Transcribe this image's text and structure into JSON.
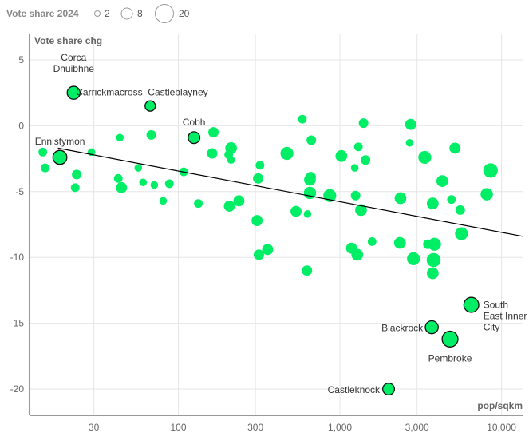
{
  "legend": {
    "title": "Vote share 2024",
    "sizes": [
      "2",
      "8",
      "20"
    ]
  },
  "chart_data": {
    "type": "scatter",
    "xlabel": "pop/sqkm",
    "ylabel": "Vote share chg",
    "x_scale": "log",
    "xlim": [
      12,
      13500
    ],
    "ylim": [
      -22,
      7
    ],
    "x_ticks": [
      30,
      100,
      300,
      1000,
      3000,
      10000
    ],
    "x_tick_labels": [
      "30",
      "100",
      "300",
      "1,000",
      "3,000",
      "10,000"
    ],
    "y_ticks": [
      5,
      0,
      -5,
      -10,
      -15,
      -20
    ],
    "y_tick_labels": [
      "5",
      "0",
      "-5",
      "-10",
      "-15",
      "-20"
    ],
    "grid": true,
    "colors": {
      "point": "#00ee66",
      "trend": "#000000"
    },
    "trendline": {
      "x": [
        18,
        13500
      ],
      "y": [
        -1.7,
        -8.4
      ]
    },
    "labelled_points": [
      {
        "label": "Corca Dhuibhne",
        "x": 22.5,
        "y": 2.5,
        "size": 9
      },
      {
        "label": "Carrickmacross–Castleblayney",
        "x": 67,
        "y": 1.5,
        "size": 5
      },
      {
        "label": "Cobh",
        "x": 125,
        "y": -0.9,
        "size": 7
      },
      {
        "label": "Ennistymon",
        "x": 18.5,
        "y": -2.4,
        "size": 11
      },
      {
        "label": "South East Inner City",
        "x": 6500,
        "y": -13.6,
        "size": 13
      },
      {
        "label": "Blackrock",
        "x": 3700,
        "y": -15.3,
        "size": 9
      },
      {
        "label": "Pembroke",
        "x": 4800,
        "y": -16.2,
        "size": 15
      },
      {
        "label": "Castleknock",
        "x": 2000,
        "y": -20.0,
        "size": 7
      }
    ],
    "points": [
      {
        "x": 14.5,
        "y": -2.0,
        "size": 3
      },
      {
        "x": 15.0,
        "y": -3.2,
        "size": 3
      },
      {
        "x": 23.5,
        "y": -3.7,
        "size": 4
      },
      {
        "x": 23.0,
        "y": -4.7,
        "size": 3
      },
      {
        "x": 29.0,
        "y": -2.0,
        "size": 2
      },
      {
        "x": 43.5,
        "y": -0.9,
        "size": 2
      },
      {
        "x": 42.5,
        "y": -4.0,
        "size": 3
      },
      {
        "x": 44.5,
        "y": -4.7,
        "size": 6
      },
      {
        "x": 56.5,
        "y": -3.2,
        "size": 2
      },
      {
        "x": 60.5,
        "y": -4.3,
        "size": 2
      },
      {
        "x": 68.0,
        "y": -0.7,
        "size": 4
      },
      {
        "x": 71.0,
        "y": -4.5,
        "size": 2
      },
      {
        "x": 80.5,
        "y": -5.7,
        "size": 2
      },
      {
        "x": 88.0,
        "y": -4.4,
        "size": 3
      },
      {
        "x": 108.0,
        "y": -3.5,
        "size": 3
      },
      {
        "x": 133.0,
        "y": -5.9,
        "size": 3
      },
      {
        "x": 165.0,
        "y": -0.5,
        "size": 5
      },
      {
        "x": 162.0,
        "y": -2.1,
        "size": 5
      },
      {
        "x": 205.0,
        "y": -2.2,
        "size": 3
      },
      {
        "x": 212.0,
        "y": -1.7,
        "size": 7
      },
      {
        "x": 212.0,
        "y": -2.6,
        "size": 2
      },
      {
        "x": 207.0,
        "y": -6.1,
        "size": 6
      },
      {
        "x": 237.0,
        "y": -5.7,
        "size": 6
      },
      {
        "x": 312.0,
        "y": -4.0,
        "size": 5
      },
      {
        "x": 320.0,
        "y": -3.0,
        "size": 3
      },
      {
        "x": 307.0,
        "y": -7.2,
        "size": 6
      },
      {
        "x": 315.0,
        "y": -9.8,
        "size": 5
      },
      {
        "x": 357.0,
        "y": -9.4,
        "size": 6
      },
      {
        "x": 470.0,
        "y": -2.1,
        "size": 9
      },
      {
        "x": 585.0,
        "y": 0.5,
        "size": 3
      },
      {
        "x": 535.0,
        "y": -6.5,
        "size": 6
      },
      {
        "x": 665.0,
        "y": -1.1,
        "size": 4
      },
      {
        "x": 652.0,
        "y": -4.1,
        "size": 7
      },
      {
        "x": 660.0,
        "y": -3.9,
        "size": 5
      },
      {
        "x": 652.0,
        "y": -5.1,
        "size": 8
      },
      {
        "x": 630.0,
        "y": -6.7,
        "size": 2
      },
      {
        "x": 625.0,
        "y": -11.0,
        "size": 5
      },
      {
        "x": 865.0,
        "y": -5.3,
        "size": 9
      },
      {
        "x": 1020.0,
        "y": -2.3,
        "size": 7
      },
      {
        "x": 1235.0,
        "y": -3.2,
        "size": 2
      },
      {
        "x": 1300.0,
        "y": -1.6,
        "size": 3
      },
      {
        "x": 1400.0,
        "y": 0.2,
        "size": 4
      },
      {
        "x": 1250.0,
        "y": -5.3,
        "size": 4
      },
      {
        "x": 1350.0,
        "y": -6.4,
        "size": 7
      },
      {
        "x": 1440.0,
        "y": -2.6,
        "size": 4
      },
      {
        "x": 1180.0,
        "y": -9.3,
        "size": 6
      },
      {
        "x": 1280.0,
        "y": -9.8,
        "size": 7
      },
      {
        "x": 1580.0,
        "y": -8.8,
        "size": 3
      },
      {
        "x": 2370.0,
        "y": -5.5,
        "size": 7
      },
      {
        "x": 2350.0,
        "y": -8.9,
        "size": 7
      },
      {
        "x": 2740.0,
        "y": 0.1,
        "size": 6
      },
      {
        "x": 2700.0,
        "y": -1.3,
        "size": 2
      },
      {
        "x": 2850.0,
        "y": -10.1,
        "size": 9
      },
      {
        "x": 3350.0,
        "y": -2.4,
        "size": 9
      },
      {
        "x": 3500.0,
        "y": -9.0,
        "size": 4
      },
      {
        "x": 3750.0,
        "y": -5.9,
        "size": 7
      },
      {
        "x": 3800.0,
        "y": -10.2,
        "size": 11
      },
      {
        "x": 3750.0,
        "y": -11.2,
        "size": 7
      },
      {
        "x": 3850.0,
        "y": -9.0,
        "size": 9
      },
      {
        "x": 4300.0,
        "y": -4.2,
        "size": 7
      },
      {
        "x": 4900.0,
        "y": -5.6,
        "size": 3
      },
      {
        "x": 5150.0,
        "y": -1.7,
        "size": 6
      },
      {
        "x": 5550.0,
        "y": -6.4,
        "size": 4
      },
      {
        "x": 5650.0,
        "y": -8.2,
        "size": 9
      },
      {
        "x": 8100.0,
        "y": -5.2,
        "size": 8
      },
      {
        "x": 8550.0,
        "y": -3.4,
        "size": 12
      }
    ]
  }
}
